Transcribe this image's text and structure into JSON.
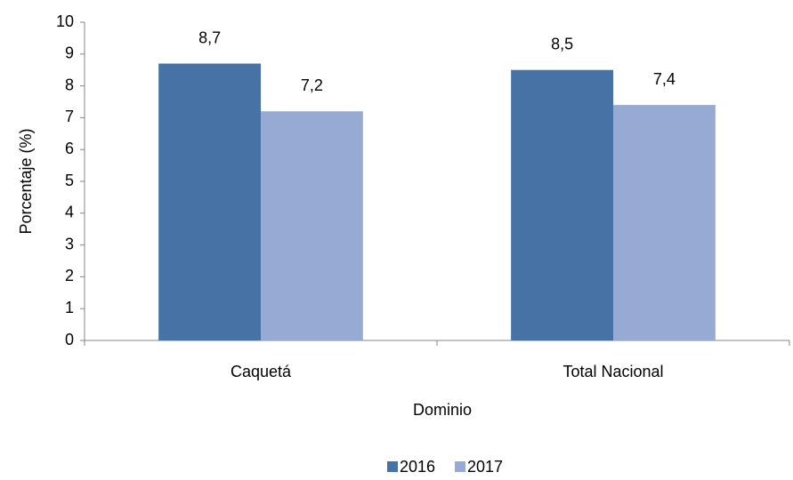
{
  "chart_data": {
    "type": "bar",
    "categories": [
      "Caquetá",
      "Total Nacional"
    ],
    "series": [
      {
        "name": "2016",
        "color": "#4672a6",
        "values": [
          8.7,
          8.5
        ],
        "value_labels": [
          "8,7",
          "8,5"
        ]
      },
      {
        "name": "2017",
        "color": "#96aad3",
        "values": [
          7.2,
          7.4
        ],
        "value_labels": [
          "7,2",
          "7,4"
        ]
      }
    ],
    "ylim": [
      0,
      10
    ],
    "yticks": [
      0,
      1,
      2,
      3,
      4,
      5,
      6,
      7,
      8,
      9,
      10
    ],
    "y_label": "Porcentaje (%)",
    "x_label": "Dominio",
    "grid": false,
    "legend": "bottom"
  }
}
